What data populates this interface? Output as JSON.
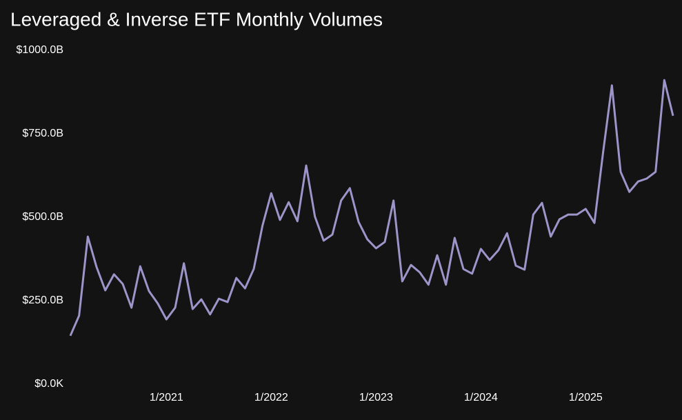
{
  "chart_data": {
    "type": "line",
    "title": "Leveraged & Inverse ETF Monthly Volumes",
    "categories": [
      null,
      null,
      null,
      null,
      null,
      null,
      null,
      null,
      null,
      null,
      null,
      "1/2021",
      null,
      null,
      null,
      null,
      null,
      null,
      null,
      null,
      null,
      null,
      null,
      "1/2022",
      null,
      null,
      null,
      null,
      null,
      null,
      null,
      null,
      null,
      null,
      null,
      "1/2023",
      null,
      null,
      null,
      null,
      null,
      null,
      null,
      null,
      null,
      null,
      null,
      "1/2024",
      null,
      null,
      null,
      null,
      null,
      null,
      null,
      null,
      null,
      null,
      null,
      "1/2025",
      null,
      null,
      null,
      null,
      null,
      null,
      null,
      null,
      null,
      null
    ],
    "series": [
      {
        "color": "#9d95c9",
        "values": [
          145,
          205,
          442,
          351,
          281,
          329,
          300,
          229,
          353,
          279,
          242,
          194,
          229,
          362,
          225,
          254,
          209,
          256,
          246,
          318,
          287,
          345,
          475,
          572,
          492,
          545,
          488,
          655,
          502,
          430,
          448,
          550,
          587,
          486,
          434,
          407,
          426,
          550,
          308,
          357,
          335,
          298,
          386,
          298,
          438,
          345,
          331,
          405,
          372,
          401,
          452,
          355,
          343,
          508,
          543,
          442,
          494,
          508,
          508,
          525,
          483,
          696,
          895,
          636,
          576,
          607,
          616,
          636,
          911,
          804
        ]
      }
    ],
    "ylim": [
      0,
      1000
    ],
    "yticks": [
      {
        "value": 0,
        "label": "$0.0K"
      },
      {
        "value": 250,
        "label": "$250.0B"
      },
      {
        "value": 500,
        "label": "$500.0B"
      },
      {
        "value": 750,
        "label": "$750.0B"
      },
      {
        "value": 1000,
        "label": "$1000.0B"
      }
    ],
    "grid": false
  }
}
